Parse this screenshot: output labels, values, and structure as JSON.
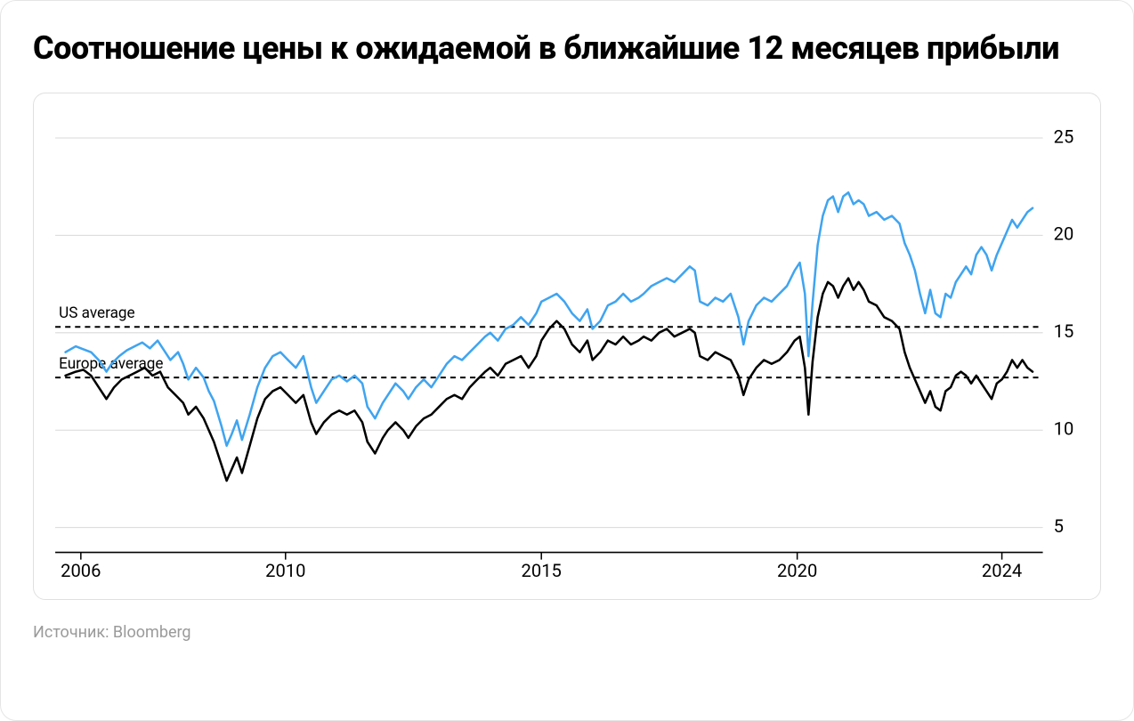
{
  "title": "Соотношение цены к ожидаемой в ближайшие 12 месяцев прибыли",
  "source": "Источник: Bloomberg",
  "chart": {
    "type": "line",
    "background_color": "#ffffff",
    "grid_color": "#d8d8d8",
    "axis_color": "#000000",
    "x": {
      "min": 2005.5,
      "max": 2024.8,
      "ticks": [
        2006,
        2010,
        2015,
        2020,
        2024
      ],
      "tick_labels": [
        "2006",
        "2010",
        "2015",
        "2020",
        "2024"
      ],
      "label_fontsize": 20
    },
    "y": {
      "min": 4,
      "max": 26,
      "ticks": [
        5,
        10,
        15,
        20,
        25
      ],
      "tick_labels": [
        "5",
        "10",
        "15",
        "20",
        "25"
      ],
      "label_fontsize": 20
    },
    "ref_lines": [
      {
        "label": "US average",
        "value": 15.3
      },
      {
        "label": "Europe average",
        "value": 12.7
      }
    ],
    "series": [
      {
        "name": "us",
        "color": "#3fa4f0",
        "line_width": 2.5,
        "data": [
          [
            2005.7,
            14.0
          ],
          [
            2005.9,
            14.3
          ],
          [
            2006.0,
            14.2
          ],
          [
            2006.2,
            14.0
          ],
          [
            2006.35,
            13.6
          ],
          [
            2006.5,
            13.0
          ],
          [
            2006.6,
            13.4
          ],
          [
            2006.75,
            13.8
          ],
          [
            2006.9,
            14.1
          ],
          [
            2007.05,
            14.3
          ],
          [
            2007.2,
            14.5
          ],
          [
            2007.35,
            14.2
          ],
          [
            2007.5,
            14.6
          ],
          [
            2007.6,
            14.2
          ],
          [
            2007.75,
            13.6
          ],
          [
            2007.9,
            14.0
          ],
          [
            2008.0,
            13.4
          ],
          [
            2008.1,
            12.6
          ],
          [
            2008.25,
            13.2
          ],
          [
            2008.4,
            12.7
          ],
          [
            2008.5,
            12.0
          ],
          [
            2008.6,
            11.5
          ],
          [
            2008.75,
            10.2
          ],
          [
            2008.85,
            9.2
          ],
          [
            2008.95,
            9.8
          ],
          [
            2009.05,
            10.5
          ],
          [
            2009.15,
            9.5
          ],
          [
            2009.3,
            10.8
          ],
          [
            2009.45,
            12.2
          ],
          [
            2009.6,
            13.2
          ],
          [
            2009.75,
            13.8
          ],
          [
            2009.9,
            14.0
          ],
          [
            2010.05,
            13.6
          ],
          [
            2010.2,
            13.2
          ],
          [
            2010.35,
            13.8
          ],
          [
            2010.5,
            12.2
          ],
          [
            2010.6,
            11.4
          ],
          [
            2010.75,
            12.0
          ],
          [
            2010.9,
            12.6
          ],
          [
            2011.05,
            12.8
          ],
          [
            2011.2,
            12.5
          ],
          [
            2011.35,
            12.8
          ],
          [
            2011.5,
            12.4
          ],
          [
            2011.6,
            11.2
          ],
          [
            2011.75,
            10.6
          ],
          [
            2011.9,
            11.4
          ],
          [
            2012.0,
            11.8
          ],
          [
            2012.15,
            12.4
          ],
          [
            2012.3,
            12.0
          ],
          [
            2012.4,
            11.6
          ],
          [
            2012.55,
            12.2
          ],
          [
            2012.7,
            12.6
          ],
          [
            2012.85,
            12.2
          ],
          [
            2013.0,
            12.8
          ],
          [
            2013.15,
            13.4
          ],
          [
            2013.3,
            13.8
          ],
          [
            2013.45,
            13.6
          ],
          [
            2013.6,
            14.0
          ],
          [
            2013.75,
            14.4
          ],
          [
            2013.9,
            14.8
          ],
          [
            2014.0,
            15.0
          ],
          [
            2014.15,
            14.6
          ],
          [
            2014.3,
            15.2
          ],
          [
            2014.45,
            15.4
          ],
          [
            2014.6,
            15.8
          ],
          [
            2014.75,
            15.4
          ],
          [
            2014.9,
            16.0
          ],
          [
            2015.0,
            16.6
          ],
          [
            2015.15,
            16.8
          ],
          [
            2015.3,
            17.0
          ],
          [
            2015.45,
            16.6
          ],
          [
            2015.6,
            16.0
          ],
          [
            2015.75,
            15.6
          ],
          [
            2015.9,
            16.2
          ],
          [
            2016.0,
            15.2
          ],
          [
            2016.15,
            15.6
          ],
          [
            2016.3,
            16.4
          ],
          [
            2016.45,
            16.6
          ],
          [
            2016.6,
            17.0
          ],
          [
            2016.75,
            16.6
          ],
          [
            2016.9,
            16.8
          ],
          [
            2017.0,
            17.0
          ],
          [
            2017.15,
            17.4
          ],
          [
            2017.3,
            17.6
          ],
          [
            2017.45,
            17.8
          ],
          [
            2017.6,
            17.6
          ],
          [
            2017.75,
            18.0
          ],
          [
            2017.9,
            18.4
          ],
          [
            2018.0,
            18.2
          ],
          [
            2018.1,
            16.6
          ],
          [
            2018.25,
            16.4
          ],
          [
            2018.4,
            16.8
          ],
          [
            2018.55,
            16.6
          ],
          [
            2018.7,
            17.0
          ],
          [
            2018.85,
            15.8
          ],
          [
            2018.95,
            14.4
          ],
          [
            2019.05,
            15.6
          ],
          [
            2019.2,
            16.4
          ],
          [
            2019.35,
            16.8
          ],
          [
            2019.5,
            16.6
          ],
          [
            2019.65,
            17.0
          ],
          [
            2019.8,
            17.4
          ],
          [
            2019.95,
            18.2
          ],
          [
            2020.05,
            18.6
          ],
          [
            2020.15,
            17.0
          ],
          [
            2020.22,
            13.8
          ],
          [
            2020.3,
            16.5
          ],
          [
            2020.4,
            19.5
          ],
          [
            2020.5,
            21.0
          ],
          [
            2020.6,
            21.8
          ],
          [
            2020.7,
            22.0
          ],
          [
            2020.8,
            21.2
          ],
          [
            2020.9,
            22.0
          ],
          [
            2021.0,
            22.2
          ],
          [
            2021.1,
            21.6
          ],
          [
            2021.2,
            21.8
          ],
          [
            2021.3,
            21.6
          ],
          [
            2021.4,
            21.0
          ],
          [
            2021.55,
            21.2
          ],
          [
            2021.7,
            20.8
          ],
          [
            2021.85,
            21.0
          ],
          [
            2022.0,
            20.6
          ],
          [
            2022.1,
            19.6
          ],
          [
            2022.2,
            19.0
          ],
          [
            2022.3,
            18.2
          ],
          [
            2022.4,
            17.0
          ],
          [
            2022.5,
            16.0
          ],
          [
            2022.6,
            17.2
          ],
          [
            2022.7,
            16.0
          ],
          [
            2022.8,
            15.8
          ],
          [
            2022.9,
            17.0
          ],
          [
            2023.0,
            16.8
          ],
          [
            2023.1,
            17.6
          ],
          [
            2023.2,
            18.0
          ],
          [
            2023.3,
            18.4
          ],
          [
            2023.4,
            18.0
          ],
          [
            2023.5,
            19.0
          ],
          [
            2023.6,
            19.4
          ],
          [
            2023.7,
            19.0
          ],
          [
            2023.8,
            18.2
          ],
          [
            2023.9,
            19.0
          ],
          [
            2024.0,
            19.6
          ],
          [
            2024.1,
            20.2
          ],
          [
            2024.2,
            20.8
          ],
          [
            2024.3,
            20.4
          ],
          [
            2024.4,
            20.8
          ],
          [
            2024.5,
            21.2
          ],
          [
            2024.6,
            21.4
          ]
        ]
      },
      {
        "name": "europe",
        "color": "#000000",
        "line_width": 2.5,
        "data": [
          [
            2005.7,
            12.8
          ],
          [
            2005.9,
            13.0
          ],
          [
            2006.05,
            13.1
          ],
          [
            2006.2,
            12.8
          ],
          [
            2006.35,
            12.2
          ],
          [
            2006.5,
            11.6
          ],
          [
            2006.65,
            12.2
          ],
          [
            2006.8,
            12.6
          ],
          [
            2006.95,
            12.8
          ],
          [
            2007.1,
            13.0
          ],
          [
            2007.25,
            13.2
          ],
          [
            2007.4,
            12.8
          ],
          [
            2007.55,
            13.0
          ],
          [
            2007.7,
            12.2
          ],
          [
            2007.85,
            11.8
          ],
          [
            2008.0,
            11.4
          ],
          [
            2008.1,
            10.8
          ],
          [
            2008.25,
            11.2
          ],
          [
            2008.4,
            10.6
          ],
          [
            2008.5,
            10.0
          ],
          [
            2008.6,
            9.4
          ],
          [
            2008.75,
            8.2
          ],
          [
            2008.85,
            7.4
          ],
          [
            2008.95,
            8.0
          ],
          [
            2009.05,
            8.6
          ],
          [
            2009.15,
            7.8
          ],
          [
            2009.3,
            9.2
          ],
          [
            2009.45,
            10.6
          ],
          [
            2009.6,
            11.6
          ],
          [
            2009.75,
            12.0
          ],
          [
            2009.9,
            12.2
          ],
          [
            2010.05,
            11.8
          ],
          [
            2010.2,
            11.4
          ],
          [
            2010.35,
            11.8
          ],
          [
            2010.5,
            10.4
          ],
          [
            2010.6,
            9.8
          ],
          [
            2010.75,
            10.4
          ],
          [
            2010.9,
            10.8
          ],
          [
            2011.05,
            11.0
          ],
          [
            2011.2,
            10.8
          ],
          [
            2011.35,
            11.0
          ],
          [
            2011.5,
            10.4
          ],
          [
            2011.6,
            9.4
          ],
          [
            2011.75,
            8.8
          ],
          [
            2011.9,
            9.6
          ],
          [
            2012.0,
            10.0
          ],
          [
            2012.15,
            10.4
          ],
          [
            2012.3,
            10.0
          ],
          [
            2012.4,
            9.6
          ],
          [
            2012.55,
            10.2
          ],
          [
            2012.7,
            10.6
          ],
          [
            2012.85,
            10.8
          ],
          [
            2013.0,
            11.2
          ],
          [
            2013.15,
            11.6
          ],
          [
            2013.3,
            11.8
          ],
          [
            2013.45,
            11.6
          ],
          [
            2013.6,
            12.2
          ],
          [
            2013.75,
            12.6
          ],
          [
            2013.9,
            13.0
          ],
          [
            2014.0,
            13.2
          ],
          [
            2014.15,
            12.8
          ],
          [
            2014.3,
            13.4
          ],
          [
            2014.45,
            13.6
          ],
          [
            2014.6,
            13.8
          ],
          [
            2014.75,
            13.2
          ],
          [
            2014.9,
            13.8
          ],
          [
            2015.0,
            14.6
          ],
          [
            2015.15,
            15.2
          ],
          [
            2015.3,
            15.6
          ],
          [
            2015.45,
            15.2
          ],
          [
            2015.6,
            14.4
          ],
          [
            2015.75,
            14.0
          ],
          [
            2015.9,
            14.6
          ],
          [
            2016.0,
            13.6
          ],
          [
            2016.15,
            14.0
          ],
          [
            2016.3,
            14.6
          ],
          [
            2016.45,
            14.4
          ],
          [
            2016.6,
            14.8
          ],
          [
            2016.75,
            14.4
          ],
          [
            2016.9,
            14.6
          ],
          [
            2017.0,
            14.8
          ],
          [
            2017.15,
            14.6
          ],
          [
            2017.3,
            15.0
          ],
          [
            2017.45,
            15.2
          ],
          [
            2017.6,
            14.8
          ],
          [
            2017.75,
            15.0
          ],
          [
            2017.9,
            15.2
          ],
          [
            2018.0,
            15.0
          ],
          [
            2018.1,
            13.8
          ],
          [
            2018.25,
            13.6
          ],
          [
            2018.4,
            14.0
          ],
          [
            2018.55,
            13.8
          ],
          [
            2018.7,
            13.6
          ],
          [
            2018.85,
            12.8
          ],
          [
            2018.95,
            11.8
          ],
          [
            2019.05,
            12.6
          ],
          [
            2019.2,
            13.2
          ],
          [
            2019.35,
            13.6
          ],
          [
            2019.5,
            13.4
          ],
          [
            2019.65,
            13.6
          ],
          [
            2019.8,
            14.0
          ],
          [
            2019.95,
            14.6
          ],
          [
            2020.05,
            14.8
          ],
          [
            2020.15,
            13.2
          ],
          [
            2020.22,
            10.8
          ],
          [
            2020.3,
            13.5
          ],
          [
            2020.4,
            15.8
          ],
          [
            2020.5,
            17.0
          ],
          [
            2020.6,
            17.6
          ],
          [
            2020.7,
            17.4
          ],
          [
            2020.8,
            16.8
          ],
          [
            2020.9,
            17.4
          ],
          [
            2021.0,
            17.8
          ],
          [
            2021.1,
            17.2
          ],
          [
            2021.2,
            17.6
          ],
          [
            2021.3,
            17.2
          ],
          [
            2021.4,
            16.6
          ],
          [
            2021.55,
            16.4
          ],
          [
            2021.7,
            15.8
          ],
          [
            2021.85,
            15.6
          ],
          [
            2022.0,
            15.2
          ],
          [
            2022.1,
            14.0
          ],
          [
            2022.2,
            13.2
          ],
          [
            2022.3,
            12.6
          ],
          [
            2022.4,
            12.0
          ],
          [
            2022.5,
            11.4
          ],
          [
            2022.6,
            12.0
          ],
          [
            2022.7,
            11.2
          ],
          [
            2022.8,
            11.0
          ],
          [
            2022.9,
            12.0
          ],
          [
            2023.0,
            12.2
          ],
          [
            2023.1,
            12.8
          ],
          [
            2023.2,
            13.0
          ],
          [
            2023.3,
            12.8
          ],
          [
            2023.4,
            12.4
          ],
          [
            2023.5,
            12.8
          ],
          [
            2023.6,
            12.4
          ],
          [
            2023.7,
            12.0
          ],
          [
            2023.8,
            11.6
          ],
          [
            2023.9,
            12.4
          ],
          [
            2024.0,
            12.6
          ],
          [
            2024.1,
            13.0
          ],
          [
            2024.2,
            13.6
          ],
          [
            2024.3,
            13.2
          ],
          [
            2024.4,
            13.6
          ],
          [
            2024.5,
            13.2
          ],
          [
            2024.6,
            13.0
          ]
        ]
      }
    ]
  }
}
